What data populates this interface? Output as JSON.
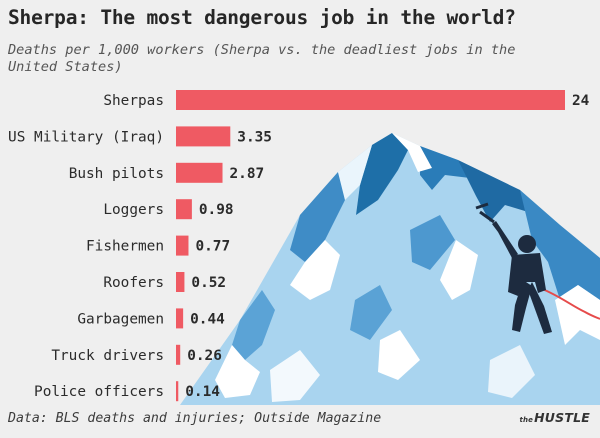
{
  "chart_data": {
    "type": "bar",
    "orientation": "horizontal",
    "title": "Sherpa: The most dangerous job in the world?",
    "subtitle": "Deaths per 1,000 workers (Sherpa vs. the deadliest jobs in the United States)",
    "categories": [
      "Sherpas",
      "US Military (Iraq)",
      "Bush pilots",
      "Loggers",
      "Fishermen",
      "Roofers",
      "Garbagemen",
      "Truck drivers",
      "Police officers"
    ],
    "values": [
      24,
      3.35,
      2.87,
      0.98,
      0.77,
      0.52,
      0.44,
      0.26,
      0.14
    ],
    "value_labels": [
      "24",
      "3.35",
      "2.87",
      "0.98",
      "0.77",
      "0.52",
      "0.44",
      "0.26",
      "0.14"
    ],
    "xlim": [
      0,
      24
    ],
    "grid": false,
    "legend": "none",
    "bar_color": "#ef5a63",
    "source": "Data: BLS deaths and injuries; Outside Magazine"
  },
  "brand": {
    "prefix": "the",
    "name": "HUSTLE"
  }
}
